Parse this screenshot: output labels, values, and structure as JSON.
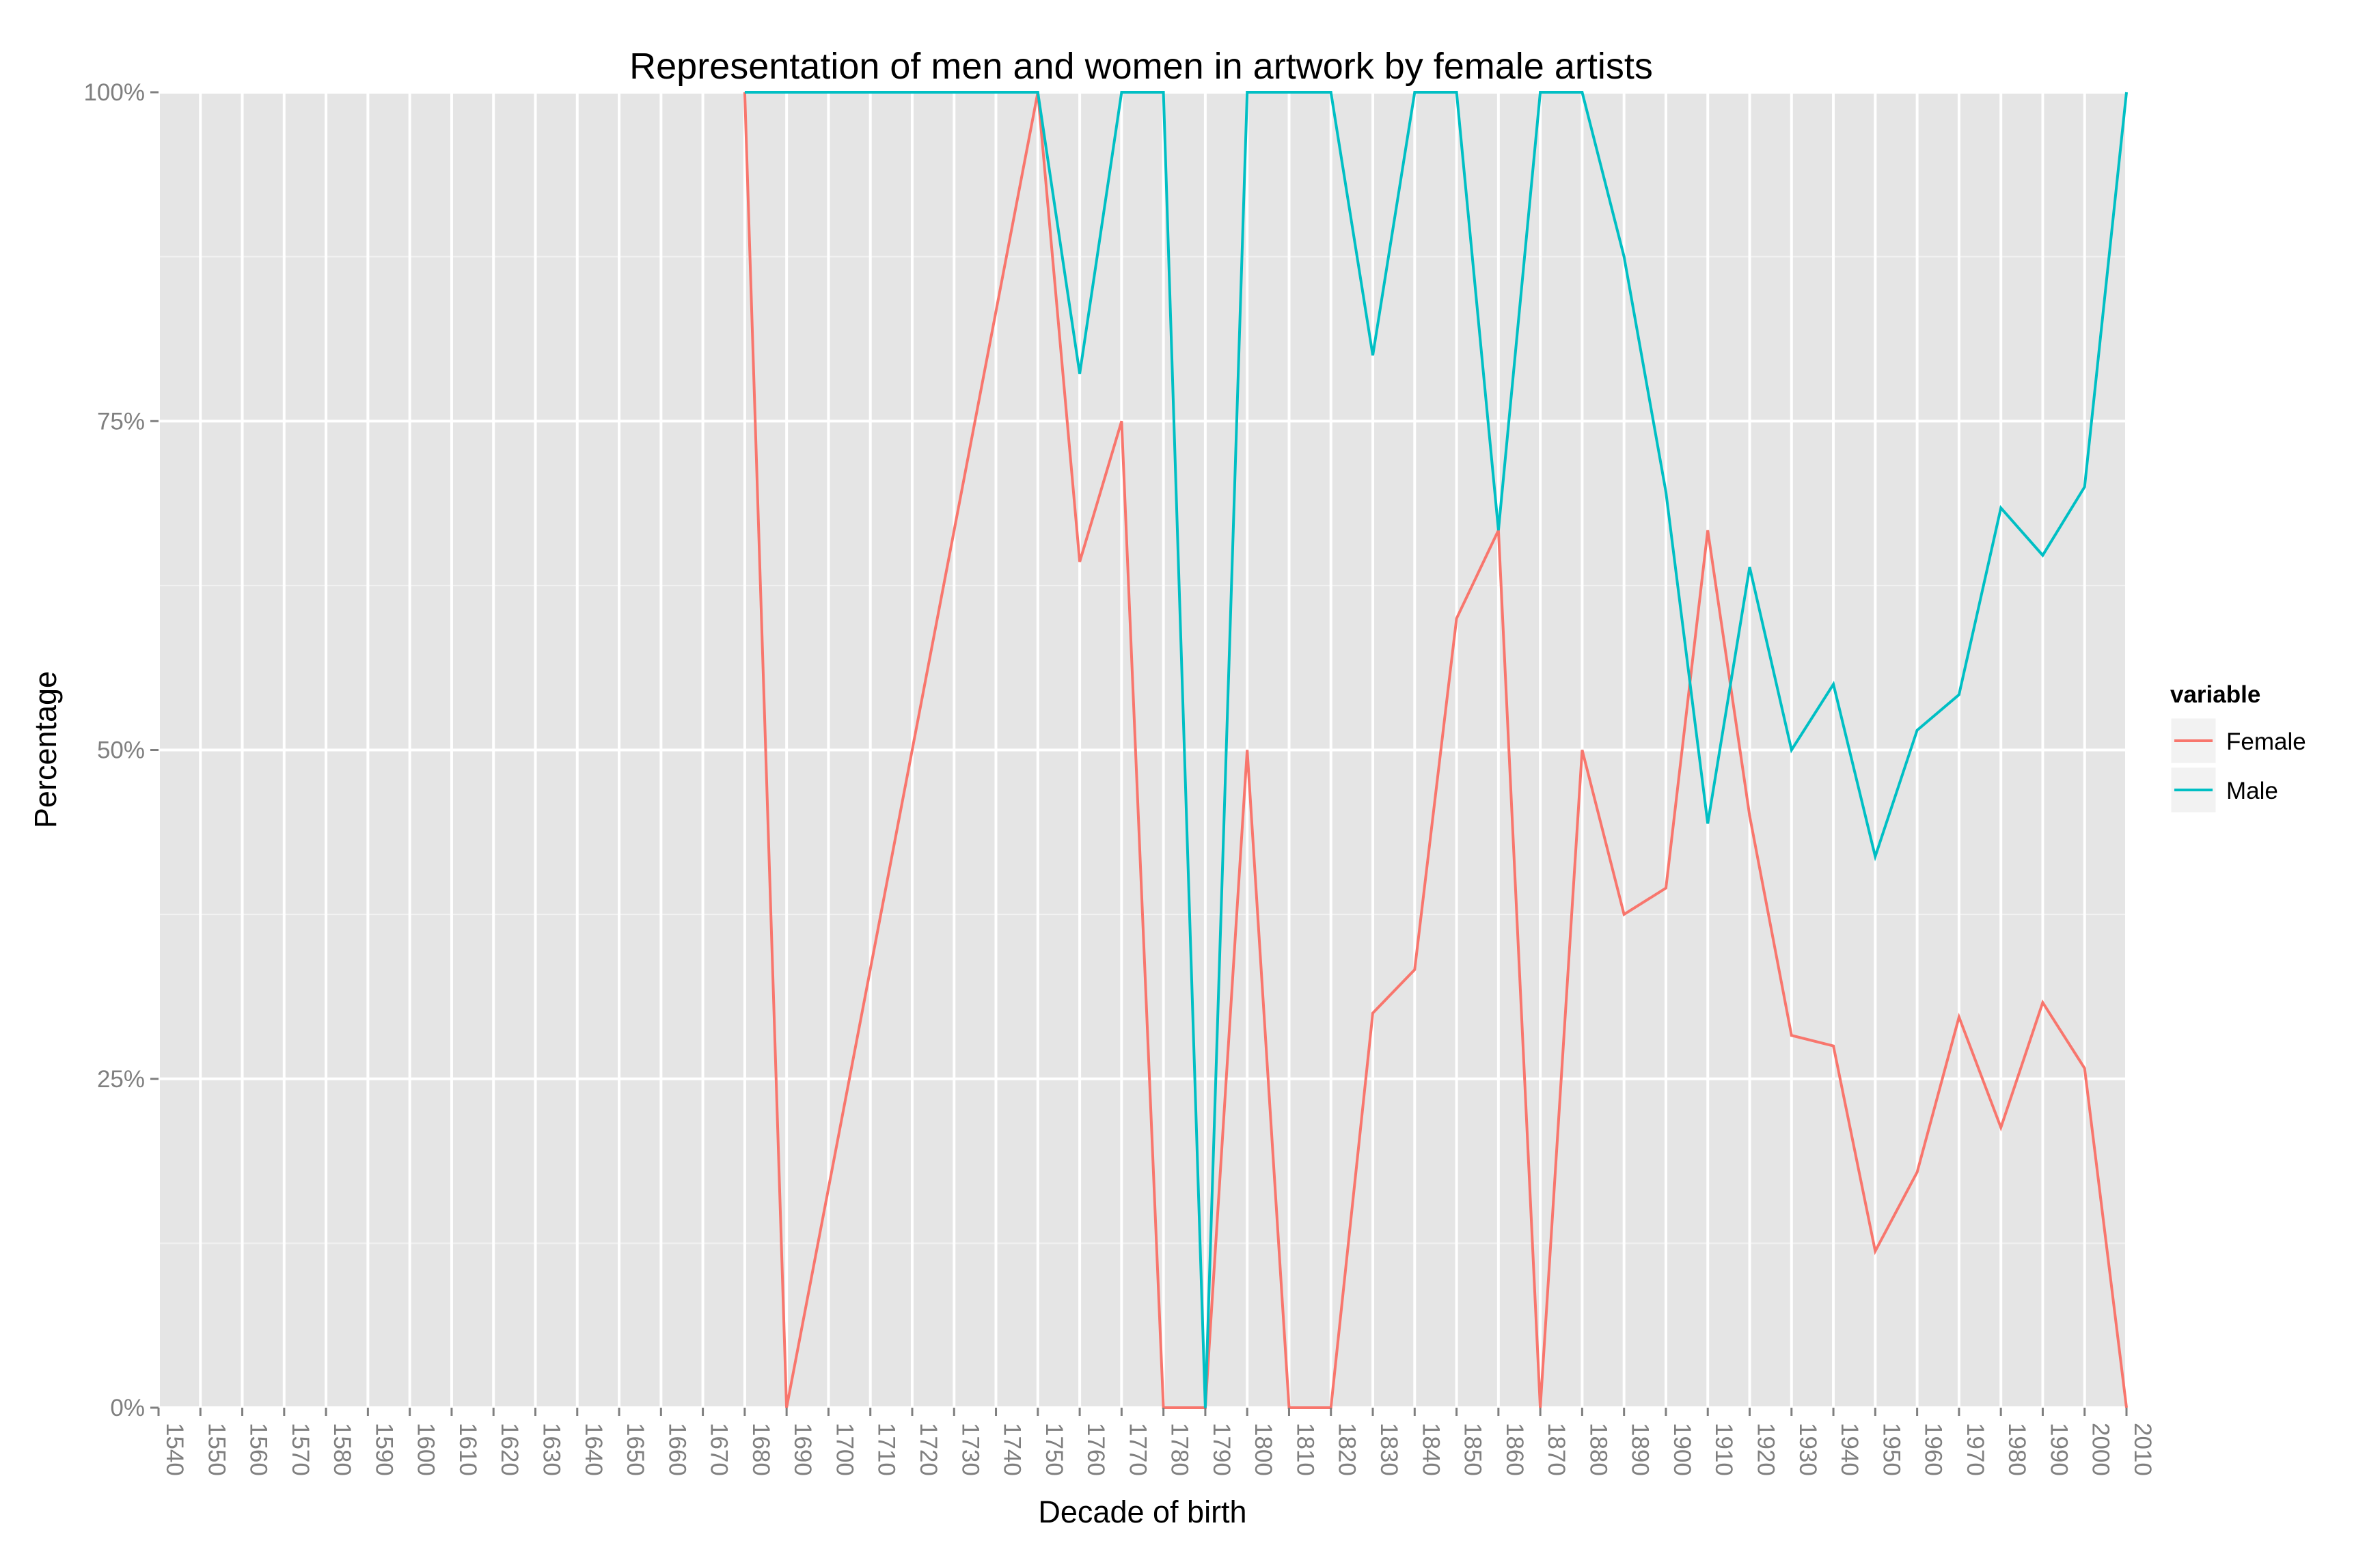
{
  "chart_data": {
    "type": "line",
    "title": "Representation of men and women in artwork by female artists",
    "xlabel": "Decade of birth",
    "ylabel": "Percentage",
    "x_ticks": [
      "1540",
      "1550",
      "1560",
      "1570",
      "1580",
      "1590",
      "1600",
      "1610",
      "1620",
      "1630",
      "1640",
      "1650",
      "1660",
      "1670",
      "1680",
      "1690",
      "1700",
      "1710",
      "1720",
      "1730",
      "1740",
      "1750",
      "1760",
      "1770",
      "1780",
      "1790",
      "1800",
      "1810",
      "1820",
      "1830",
      "1840",
      "1850",
      "1860",
      "1870",
      "1880",
      "1890",
      "1900",
      "1910",
      "1920",
      "1930",
      "1940",
      "1950",
      "1960",
      "1970",
      "1980",
      "1990",
      "2000",
      "2010"
    ],
    "y_ticks": [
      "0%",
      "25%",
      "50%",
      "75%",
      "100%"
    ],
    "xlim": [
      1540,
      2010
    ],
    "ylim": [
      0,
      100
    ],
    "grid": true,
    "legend": {
      "title": "variable",
      "position": "right"
    },
    "series": [
      {
        "name": "Female",
        "color": "#f8766d",
        "points": [
          [
            1680,
            100
          ],
          [
            1690,
            0
          ],
          [
            1750,
            100
          ],
          [
            1760,
            64.3
          ],
          [
            1770,
            75
          ],
          [
            1780,
            0
          ],
          [
            1790,
            0
          ],
          [
            1800,
            50
          ],
          [
            1810,
            0
          ],
          [
            1820,
            0
          ],
          [
            1830,
            30
          ],
          [
            1840,
            33.3
          ],
          [
            1850,
            60
          ],
          [
            1860,
            66.7
          ],
          [
            1870,
            0
          ],
          [
            1880,
            50
          ],
          [
            1890,
            37.5
          ],
          [
            1900,
            39.5
          ],
          [
            1910,
            66.7
          ],
          [
            1920,
            45
          ],
          [
            1930,
            28.3
          ],
          [
            1940,
            27.5
          ],
          [
            1950,
            11.9
          ],
          [
            1960,
            17.9
          ],
          [
            1970,
            29.7
          ],
          [
            1980,
            21.3
          ],
          [
            1990,
            30.8
          ],
          [
            2000,
            25.8
          ],
          [
            2010,
            0
          ]
        ]
      },
      {
        "name": "Male",
        "color": "#00bfc4",
        "points": [
          [
            1680,
            100
          ],
          [
            1690,
            100
          ],
          [
            1750,
            100
          ],
          [
            1760,
            78.6
          ],
          [
            1770,
            100
          ],
          [
            1780,
            100
          ],
          [
            1790,
            0
          ],
          [
            1800,
            100
          ],
          [
            1810,
            100
          ],
          [
            1820,
            100
          ],
          [
            1830,
            80
          ],
          [
            1840,
            100
          ],
          [
            1850,
            100
          ],
          [
            1860,
            66.7
          ],
          [
            1870,
            100
          ],
          [
            1880,
            100
          ],
          [
            1890,
            87.5
          ],
          [
            1900,
            69.6
          ],
          [
            1910,
            44.4
          ],
          [
            1920,
            63.9
          ],
          [
            1930,
            50
          ],
          [
            1940,
            55
          ],
          [
            1950,
            41.9
          ],
          [
            1960,
            51.5
          ],
          [
            1970,
            54.2
          ],
          [
            1980,
            68.4
          ],
          [
            1990,
            64.8
          ],
          [
            2000,
            70
          ],
          [
            2010,
            100
          ]
        ]
      }
    ]
  }
}
